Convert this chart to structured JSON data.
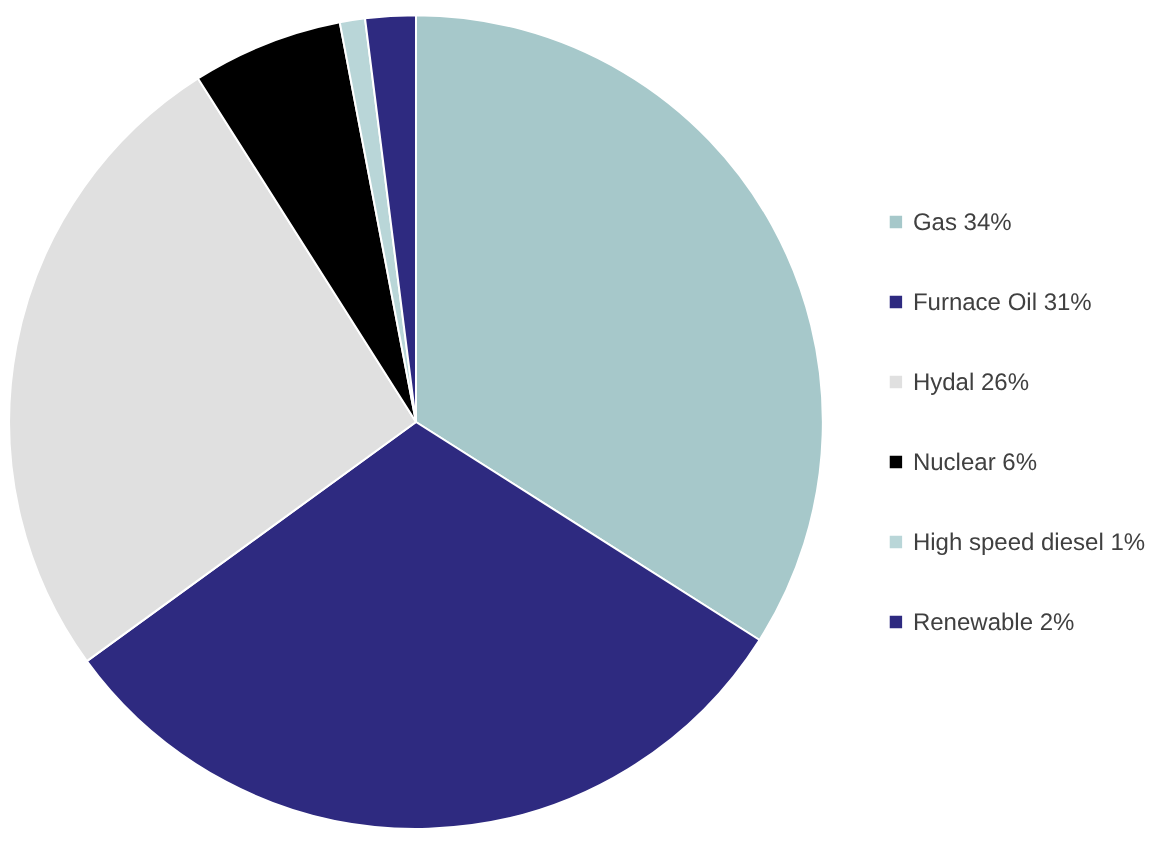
{
  "chart_data": {
    "type": "pie",
    "categories": [
      "Gas 34%",
      "Furnace Oil 31%",
      "Hydal 26%",
      "Nuclear 6%",
      "High speed diesel 1%",
      "Renewable 2%"
    ],
    "values": [
      34,
      31,
      26,
      6,
      1,
      2
    ],
    "colors": [
      "#a6c8ca",
      "#2e2a80",
      "#e0e0e0",
      "#000000",
      "#b9d6d8",
      "#2e2a80"
    ],
    "legend": "right"
  }
}
